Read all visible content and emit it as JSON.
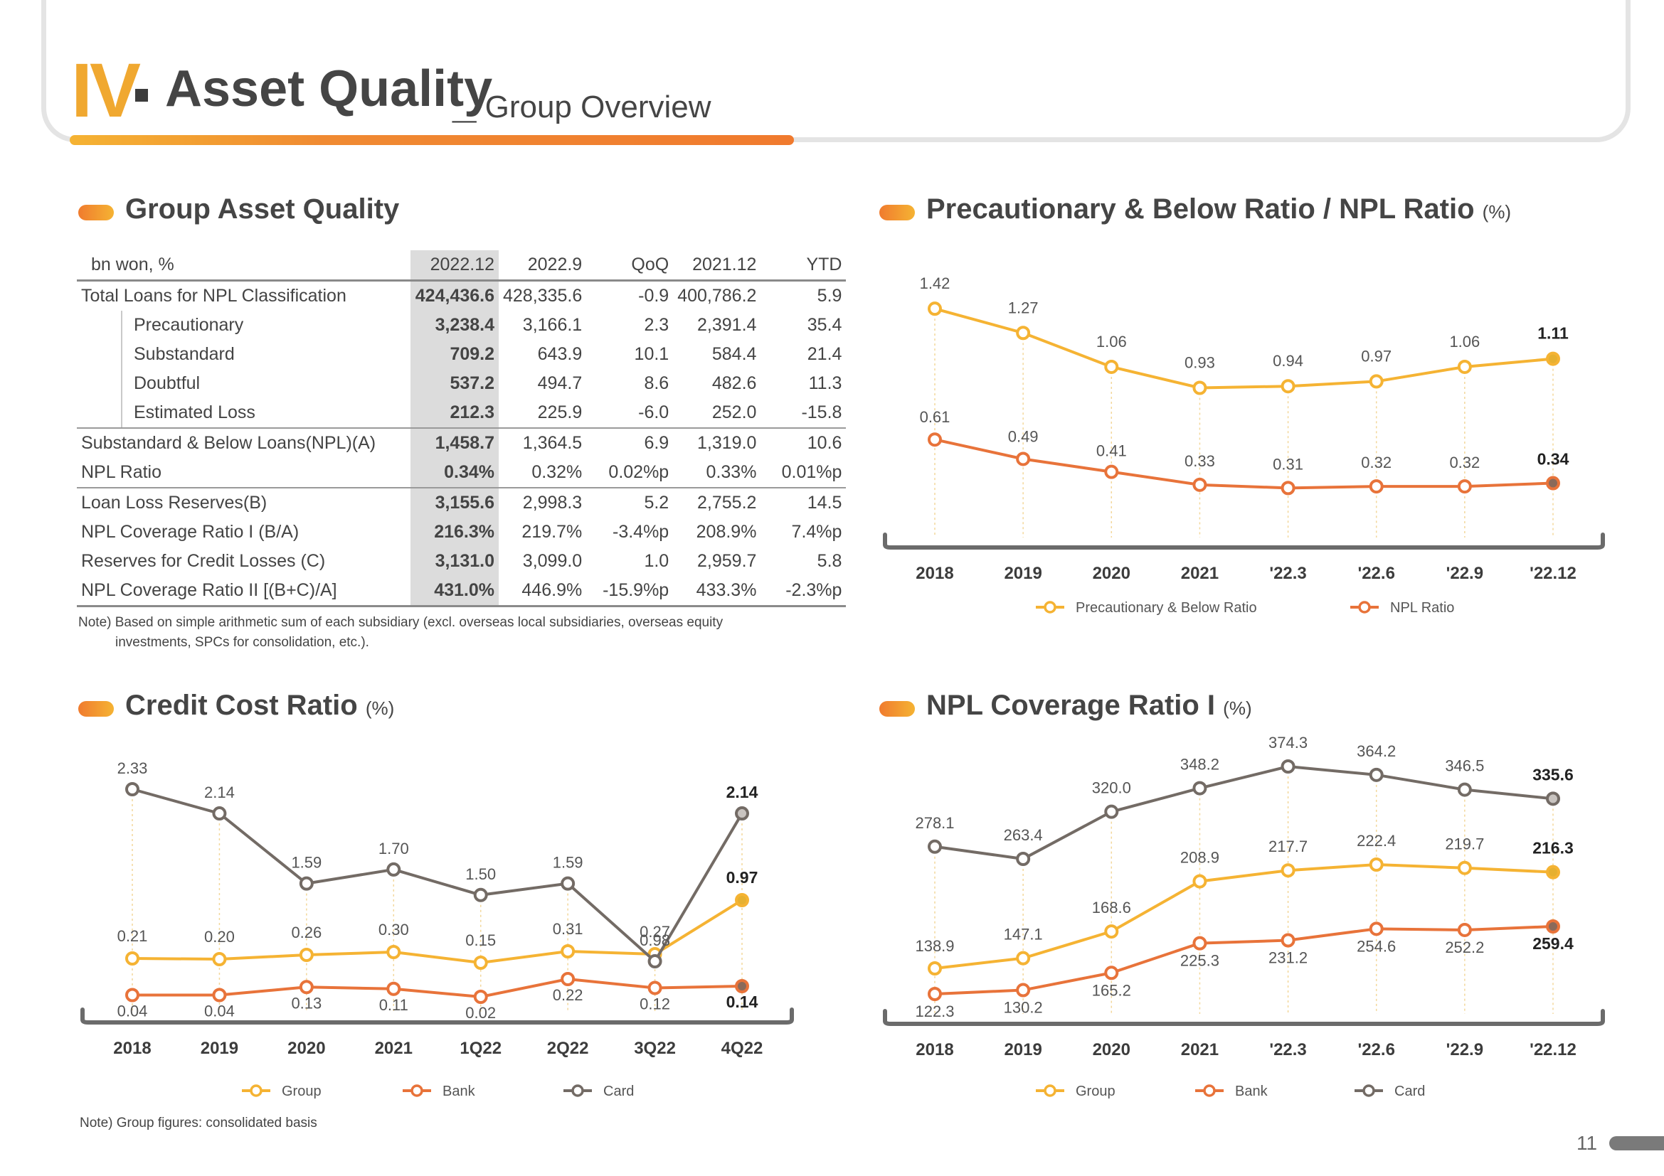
{
  "header": {
    "roman": "IV",
    "title": "Asset Quality",
    "separator": "_",
    "subtitle": "Group Overview"
  },
  "table_section": {
    "title": "Group Asset Quality",
    "columns": [
      "bn won, %",
      "2022.12",
      "2022.9",
      "QoQ",
      "2021.12",
      "YTD"
    ],
    "rows": [
      {
        "label": "Total Loans for NPL Classification",
        "indent": false,
        "cells": [
          "424,436.6",
          "428,335.6",
          "-0.9",
          "400,786.2",
          "5.9"
        ]
      },
      {
        "label": "Precautionary",
        "indent": true,
        "cells": [
          "3,238.4",
          "3,166.1",
          "2.3",
          "2,391.4",
          "35.4"
        ]
      },
      {
        "label": "Substandard",
        "indent": true,
        "cells": [
          "709.2",
          "643.9",
          "10.1",
          "584.4",
          "21.4"
        ]
      },
      {
        "label": "Doubtful",
        "indent": true,
        "cells": [
          "537.2",
          "494.7",
          "8.6",
          "482.6",
          "11.3"
        ]
      },
      {
        "label": "Estimated Loss",
        "indent": true,
        "cells": [
          "212.3",
          "225.9",
          "-6.0",
          "252.0",
          "-15.8"
        ]
      },
      {
        "label": "Substandard & Below Loans(NPL)(A)",
        "indent": false,
        "cells": [
          "1,458.7",
          "1,364.5",
          "6.9",
          "1,319.0",
          "10.6"
        ]
      },
      {
        "label": "NPL Ratio",
        "indent": false,
        "cells": [
          "0.34%",
          "0.32%",
          "0.02%p",
          "0.33%",
          "0.01%p"
        ]
      },
      {
        "label": "Loan Loss Reserves(B)",
        "indent": false,
        "cells": [
          "3,155.6",
          "2,998.3",
          "5.2",
          "2,755.2",
          "14.5"
        ]
      },
      {
        "label": "NPL Coverage Ratio I (B/A)",
        "indent": false,
        "cells": [
          "216.3%",
          "219.7%",
          "-3.4%p",
          "208.9%",
          "7.4%p"
        ]
      },
      {
        "label": "Reserves for Credit Losses (C)",
        "indent": false,
        "cells": [
          "3,131.0",
          "3,099.0",
          "1.0",
          "2,959.7",
          "5.8"
        ]
      },
      {
        "label": "NPL Coverage  Ratio II [(B+C)/A]",
        "indent": false,
        "cells": [
          "431.0%",
          "446.9%",
          "-15.9%p",
          "433.3%",
          "-2.3%p"
        ]
      }
    ],
    "note_line1": "Note) Based on simple arithmetic sum of each subsidiary (excl. overseas local subsidiaries, overseas equity",
    "note_line2": "investments, SPCs for consolidation, etc.)."
  },
  "chart_section_titles": {
    "precautionary": "Precautionary & Below Ratio / NPL Ratio",
    "precautionary_unit": "(%)",
    "credit_cost": "Credit Cost Ratio",
    "credit_cost_unit": "(%)",
    "coverage": "NPL Coverage Ratio I",
    "coverage_unit": "(%)"
  },
  "chart_data": [
    {
      "id": "precautionary",
      "type": "line",
      "categories": [
        "2018",
        "2019",
        "2020",
        "2021",
        "'22.3",
        "'22.6",
        "'22.9",
        "'22.12"
      ],
      "series": [
        {
          "name": "Precautionary & Below Ratio",
          "color": "#f5b333",
          "values": [
            1.42,
            1.27,
            1.06,
            0.93,
            0.94,
            0.97,
            1.06,
            1.11
          ],
          "labels": [
            "1.42",
            "1.27",
            "1.06",
            "0.93",
            "0.94",
            "0.97",
            "1.06",
            "1.11"
          ]
        },
        {
          "name": "NPL Ratio",
          "color": "#e8733a",
          "values": [
            0.61,
            0.49,
            0.41,
            0.33,
            0.31,
            0.32,
            0.32,
            0.34
          ],
          "labels": [
            "0.61",
            "0.49",
            "0.41",
            "0.33",
            "0.31",
            "0.32",
            "0.32",
            "0.34"
          ]
        }
      ],
      "ylim": [
        0.25,
        1.5
      ],
      "legend": "bottom"
    },
    {
      "id": "credit_cost",
      "type": "line",
      "categories": [
        "2018",
        "2019",
        "2020",
        "2021",
        "1Q22",
        "2Q22",
        "3Q22",
        "4Q22"
      ],
      "series": [
        {
          "name": "Group",
          "color": "#f5b333",
          "values": [
            0.21,
            0.2,
            0.26,
            0.3,
            0.15,
            0.31,
            0.27,
            0.97
          ],
          "labels": [
            "0.21",
            "0.20",
            "0.26",
            "0.30",
            "0.15",
            "0.31",
            "0.27",
            "0.97"
          ]
        },
        {
          "name": "Bank",
          "color": "#e8733a",
          "values": [
            0.04,
            0.04,
            0.13,
            0.11,
            0.02,
            0.22,
            0.12,
            0.14
          ],
          "labels": [
            "0.04",
            "0.04",
            "0.13",
            "0.11",
            "0.02",
            "0.22",
            "0.12",
            "0.14"
          ]
        },
        {
          "name": "Card",
          "color": "#736b65",
          "values": [
            2.33,
            2.14,
            1.59,
            1.7,
            1.5,
            1.59,
            0.98,
            2.14
          ],
          "labels": [
            "2.33",
            "2.14",
            "1.59",
            "1.70",
            "1.50",
            "1.59",
            "0.98",
            "2.14"
          ]
        }
      ],
      "legend": "bottom"
    },
    {
      "id": "coverage",
      "type": "line",
      "categories": [
        "2018",
        "2019",
        "2020",
        "2021",
        "'22.3",
        "'22.6",
        "'22.9",
        "'22.12"
      ],
      "series": [
        {
          "name": "Group",
          "color": "#f5b333",
          "values": [
            138.9,
            147.1,
            168.6,
            208.9,
            217.7,
            222.4,
            219.7,
            216.3
          ],
          "labels": [
            "138.9",
            "147.1",
            "168.6",
            "208.9",
            "217.7",
            "222.4",
            "219.7",
            "216.3"
          ]
        },
        {
          "name": "Bank",
          "color": "#e8733a",
          "values": [
            122.3,
            130.2,
            165.2,
            225.3,
            231.2,
            254.6,
            252.2,
            259.4
          ],
          "labels": [
            "122.3",
            "130.2",
            "165.2",
            "225.3",
            "231.2",
            "254.6",
            "252.2",
            "259.4"
          ]
        },
        {
          "name": "Card",
          "color": "#736b65",
          "values": [
            278.1,
            263.4,
            320.0,
            348.2,
            374.3,
            364.2,
            346.5,
            335.6
          ],
          "labels": [
            "278.1",
            "263.4",
            "320.0",
            "348.2",
            "374.3",
            "364.2",
            "346.5",
            "335.6"
          ]
        }
      ],
      "legend": "bottom"
    }
  ],
  "bottom_note": "Note) Group figures: consolidated basis",
  "page_number": "11"
}
